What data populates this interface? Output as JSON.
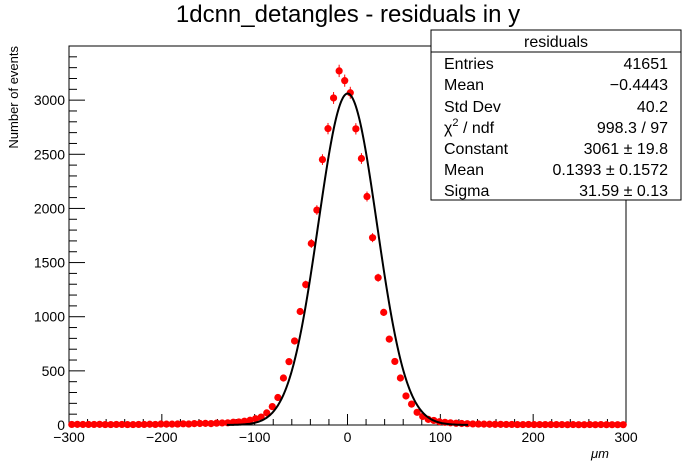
{
  "chart_data": {
    "type": "scatter",
    "title": "1dcnn_detangles - residuals in y",
    "xlabel": "μm",
    "ylabel": "Number of events",
    "xlim": [
      -300,
      300
    ],
    "ylim": [
      0,
      3500
    ],
    "x_ticks": [
      -300,
      -200,
      -100,
      0,
      100,
      200,
      300
    ],
    "x_tick_labels": [
      "−300",
      "−200",
      "−100",
      "0",
      "100",
      "200",
      "300"
    ],
    "y_ticks": [
      0,
      500,
      1000,
      1500,
      2000,
      2500,
      3000
    ],
    "y_tick_labels": [
      "0",
      "500",
      "1000",
      "1500",
      "2000",
      "2500",
      "3000"
    ],
    "grid": false,
    "series": [
      {
        "marker_color": "#ff0000",
        "x": [
          -297,
          -291,
          -285,
          -279,
          -273,
          -267,
          -261,
          -255,
          -249,
          -243,
          -237,
          -231,
          -225,
          -219,
          -213,
          -207,
          -201,
          -195,
          -189,
          -183,
          -177,
          -171,
          -165,
          -159,
          -153,
          -147,
          -141,
          -135,
          -129,
          -123,
          -117,
          -111,
          -105,
          -99,
          -93,
          -87,
          -81,
          -75,
          -69,
          -63,
          -57,
          -51,
          -45,
          -39,
          -33,
          -27,
          -21,
          -15,
          -9,
          -3,
          3,
          9,
          15,
          21,
          27,
          33,
          39,
          45,
          51,
          57,
          63,
          69,
          75,
          81,
          87,
          93,
          99,
          105,
          111,
          117,
          123,
          129,
          135,
          141,
          147,
          153,
          159,
          165,
          171,
          177,
          183,
          189,
          195,
          201,
          207,
          213,
          219,
          225,
          231,
          237,
          243,
          249,
          255,
          261,
          267,
          273,
          279,
          285,
          291,
          297
        ],
        "y": [
          5,
          6,
          5,
          5,
          5,
          6,
          4,
          4,
          5,
          5,
          4,
          4,
          5,
          5,
          7,
          5,
          9,
          8,
          8,
          9,
          11,
          9,
          13,
          14,
          15,
          13,
          17,
          19,
          20,
          26,
          28,
          35,
          44,
          58,
          73,
          112,
          170,
          254,
          434,
          585,
          776,
          1048,
          1297,
          1676,
          1985,
          2451,
          2737,
          3020,
          3270,
          3180,
          3068,
          2735,
          2461,
          2110,
          1730,
          1360,
          1040,
          793,
          587,
          434,
          268,
          193,
          117,
          79,
          52,
          42,
          30,
          25,
          20,
          16,
          14,
          12,
          10,
          9,
          8,
          7,
          6,
          6,
          5,
          5,
          4,
          4,
          5,
          4,
          4,
          4,
          4,
          4,
          4,
          3,
          4,
          3,
          3,
          4,
          3,
          4,
          3,
          3,
          3,
          3
        ]
      },
      {
        "type": "line",
        "line_color": "#000000",
        "function": "gaus",
        "constant": 3061,
        "mean": 0.1393,
        "sigma": 31.59
      }
    ]
  },
  "stats": {
    "title": "residuals",
    "rows": [
      {
        "label": "Entries",
        "value": "41651"
      },
      {
        "label": "Mean",
        "value": "−0.4443"
      },
      {
        "label": "Std Dev",
        "value": "40.2"
      },
      {
        "label": "χ",
        "sup": "2",
        "label_rest": " / ndf",
        "value": "998.3 / 97"
      },
      {
        "label": "Constant",
        "value": "3061 ± 19.8"
      },
      {
        "label": "Mean",
        "value": "0.1393 ± 0.1572"
      },
      {
        "label": "Sigma",
        "value": "31.59 ± 0.13"
      }
    ]
  }
}
